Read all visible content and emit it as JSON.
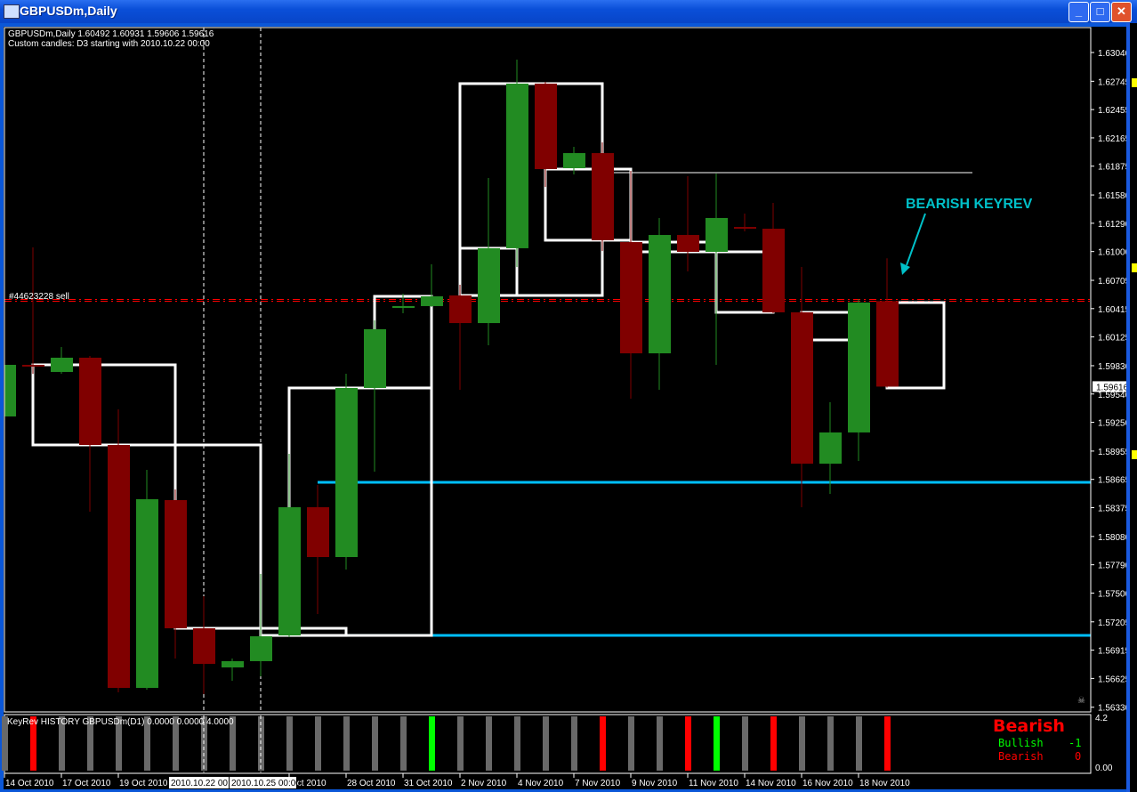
{
  "window": {
    "title": "GBPUSDm,Daily",
    "buttons": [
      "minimize",
      "maximize",
      "close"
    ]
  },
  "header": {
    "line1": "GBPUSDm,Daily  1.60492 1.60931 1.59606 1.59616",
    "line2": "Custom candles: D3 starting with 2010.10.22 00:00"
  },
  "colors": {
    "bull": "#228b22",
    "bear": "#800000",
    "d3_outline": "#ffffff",
    "support": "#00bfff",
    "order_line": "#ff0000",
    "annotation": "#00c0c8",
    "sig_bull": "#00ff00",
    "sig_bear": "#ff0000",
    "sig_none": "#696969"
  },
  "chart_data": {
    "type": "candlestick",
    "symbol": "GBPUSDm",
    "timeframe": "Daily",
    "ylim": [
      1.5633,
      1.6304
    ],
    "candles": [
      [
        1.5931,
        1.59884,
        1.59292,
        1.59839
      ],
      [
        1.59839,
        1.61043,
        1.59748,
        1.59821
      ],
      [
        1.59766,
        1.60021,
        1.59748,
        1.59912
      ],
      [
        1.59912,
        1.5993,
        1.58334,
        1.59018
      ],
      [
        1.59018,
        1.59383,
        1.56483,
        1.56528
      ],
      [
        1.56528,
        1.58763,
        1.5651,
        1.58462
      ],
      [
        1.58453,
        1.58562,
        1.56829,
        1.57139
      ],
      [
        1.57139,
        1.57468,
        1.56464,
        1.56774
      ],
      [
        1.56738,
        1.56829,
        1.56601,
        1.56802
      ],
      [
        1.56802,
        1.57696,
        1.56647,
        1.57057
      ],
      [
        1.57066,
        1.58927,
        1.57048,
        1.5838
      ],
      [
        1.5838,
        1.58608,
        1.57285,
        1.57869
      ],
      [
        1.57869,
        1.59748,
        1.57741,
        1.59602
      ],
      [
        1.59602,
        1.60295,
        1.58744,
        1.60204
      ],
      [
        1.60422,
        1.60568,
        1.60368,
        1.60441
      ],
      [
        1.60441,
        1.60869,
        1.60432,
        1.60541
      ],
      [
        1.6055,
        1.6066,
        1.59583,
        1.60267
      ],
      [
        1.60267,
        1.61754,
        1.60039,
        1.61034
      ],
      [
        1.61034,
        1.62967,
        1.60842,
        1.62721
      ],
      [
        1.62721,
        1.62739,
        1.61663,
        1.61845
      ],
      [
        1.61854,
        1.62073,
        1.6179,
        1.62009
      ],
      [
        1.62009,
        1.62119,
        1.61006,
        1.61116
      ],
      [
        1.61097,
        1.61827,
        1.59492,
        1.59957
      ],
      [
        1.59957,
        1.61344,
        1.59583,
        1.6117
      ],
      [
        1.6117,
        1.61772,
        1.60796,
        1.60997
      ],
      [
        1.60997,
        1.618,
        1.59839,
        1.61344
      ],
      [
        1.61252,
        1.61389,
        1.61207,
        1.61234
      ],
      [
        1.61234,
        1.61499,
        1.60368,
        1.60377
      ],
      [
        1.60377,
        1.60842,
        1.5838,
        1.58826
      ],
      [
        1.58826,
        1.59456,
        1.58516,
        1.59146
      ],
      [
        1.59146,
        1.60514,
        1.58854,
        1.60477
      ],
      [
        1.60492,
        1.60931,
        1.59606,
        1.59616
      ]
    ],
    "d3_candles": [
      [
        1,
        6,
        1.59839,
        1.59018
      ],
      [
        6,
        9,
        1.59018,
        1.57139
      ],
      [
        9,
        12,
        1.57139,
        1.57066
      ],
      [
        10,
        15,
        1.59602,
        1.57066
      ],
      [
        13,
        15,
        1.60541,
        1.59602
      ],
      [
        16,
        18,
        1.61034,
        1.6055
      ],
      [
        16,
        21,
        1.62721,
        1.6055
      ],
      [
        19,
        22,
        1.61845,
        1.61116
      ],
      [
        22,
        25,
        1.61097,
        1.60997
      ],
      [
        25,
        27,
        1.60997,
        1.60377
      ],
      [
        28,
        30,
        1.60377,
        1.60094
      ],
      [
        31,
        33,
        1.60477,
        1.59602
      ]
    ],
    "resistance_line": {
      "price": 1.61809,
      "from_bar": 21,
      "to_bar": 34
    },
    "support_lines": [
      {
        "price": 1.58635,
        "from_bar": 11
      },
      {
        "price": 1.57066,
        "from_bar": 9
      }
    ],
    "order_line": {
      "price": 1.605,
      "label": "#44623228 sell"
    },
    "vertical_markers": [
      {
        "bar": 7,
        "label": "2010.10.22 00:"
      },
      {
        "bar": 9,
        "label": "2010.10.25 00:00"
      }
    ],
    "last_price": "1.59616",
    "price_ticks": [
      "1.63040",
      "1.62745",
      "1.62455",
      "1.62165",
      "1.61875",
      "1.61580",
      "1.61290",
      "1.61000",
      "1.60705",
      "1.60415",
      "1.60125",
      "1.59830",
      "1.59540",
      "1.59250",
      "1.58955",
      "1.58665",
      "1.58375",
      "1.58080",
      "1.57790",
      "1.57500",
      "1.57205",
      "1.56915",
      "1.56625",
      "1.56330"
    ],
    "time_ticks": [
      {
        "bar": 0,
        "label": "14 Oct 2010"
      },
      {
        "bar": 2,
        "label": "17 Oct 2010"
      },
      {
        "bar": 4,
        "label": "19 Oct 2010"
      },
      {
        "bar": 10,
        "label": "Oct 2010"
      },
      {
        "bar": 12,
        "label": "28 Oct 2010"
      },
      {
        "bar": 14,
        "label": "31 Oct 2010"
      },
      {
        "bar": 16,
        "label": "2 Nov 2010"
      },
      {
        "bar": 18,
        "label": "4 Nov 2010"
      },
      {
        "bar": 20,
        "label": "7 Nov 2010"
      },
      {
        "bar": 22,
        "label": "9 Nov 2010"
      },
      {
        "bar": 24,
        "label": "11 Nov 2010"
      },
      {
        "bar": 26,
        "label": "14 Nov 2010"
      },
      {
        "bar": 28,
        "label": "16 Nov 2010"
      },
      {
        "bar": 30,
        "label": "18 Nov 2010"
      }
    ],
    "annotation": {
      "text": "BEARISH KEYREV"
    }
  },
  "indicator": {
    "title": "KeyRev HISTORY GBPUSDm(D1) 0.0000 0.0000 4.0000",
    "scale_top": "4.2",
    "scale_bottom": "0.00",
    "signals": [
      0,
      -1,
      0,
      0,
      0,
      0,
      0,
      0,
      0,
      0,
      0,
      0,
      0,
      0,
      0,
      1,
      0,
      0,
      0,
      0,
      0,
      -1,
      0,
      0,
      -1,
      1,
      0,
      -1,
      0,
      0,
      0,
      -1
    ],
    "panel_title": "Bearish",
    "rows": [
      {
        "label": "Bullish",
        "value": "-1"
      },
      {
        "label": "Bearish",
        "value": "0"
      }
    ]
  }
}
